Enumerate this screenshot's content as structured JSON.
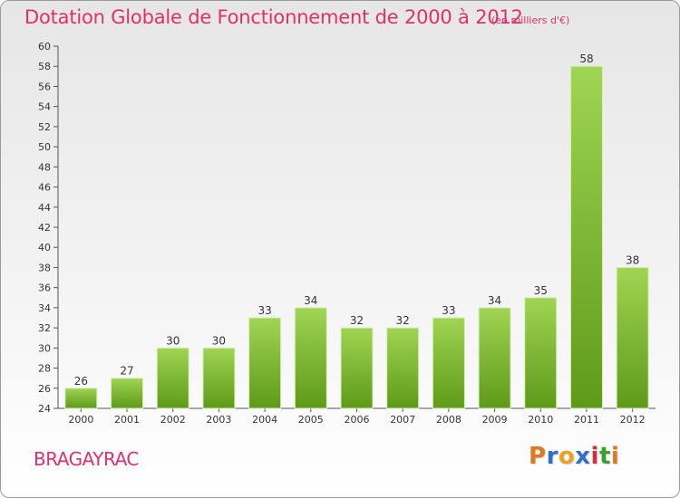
{
  "header": {
    "title": "Dotation Globale de Fonctionnement de 2000 à 2012",
    "unit_note": "(en milliers d'€)"
  },
  "footer": {
    "commune": "BRAGAYRAC",
    "logo_text": "Proxiti"
  },
  "colors": {
    "title": "#e0306c",
    "bar_top": "#9fd553",
    "bar_bottom": "#5e9a18",
    "logo_letters": [
      "#e07820",
      "#2f6fd0",
      "#f0a020",
      "#2f6fd0",
      "#d03040",
      "#3aa030",
      "#e07820"
    ]
  },
  "chart_data": {
    "type": "bar",
    "categories": [
      "2000",
      "2001",
      "2002",
      "2003",
      "2004",
      "2005",
      "2006",
      "2007",
      "2008",
      "2009",
      "2010",
      "2011",
      "2012"
    ],
    "values": [
      26,
      27,
      30,
      30,
      33,
      34,
      32,
      32,
      33,
      34,
      35,
      58,
      38
    ],
    "ylim": [
      24,
      60
    ],
    "ytick_step": 2,
    "grid": false,
    "data_labels": true
  }
}
